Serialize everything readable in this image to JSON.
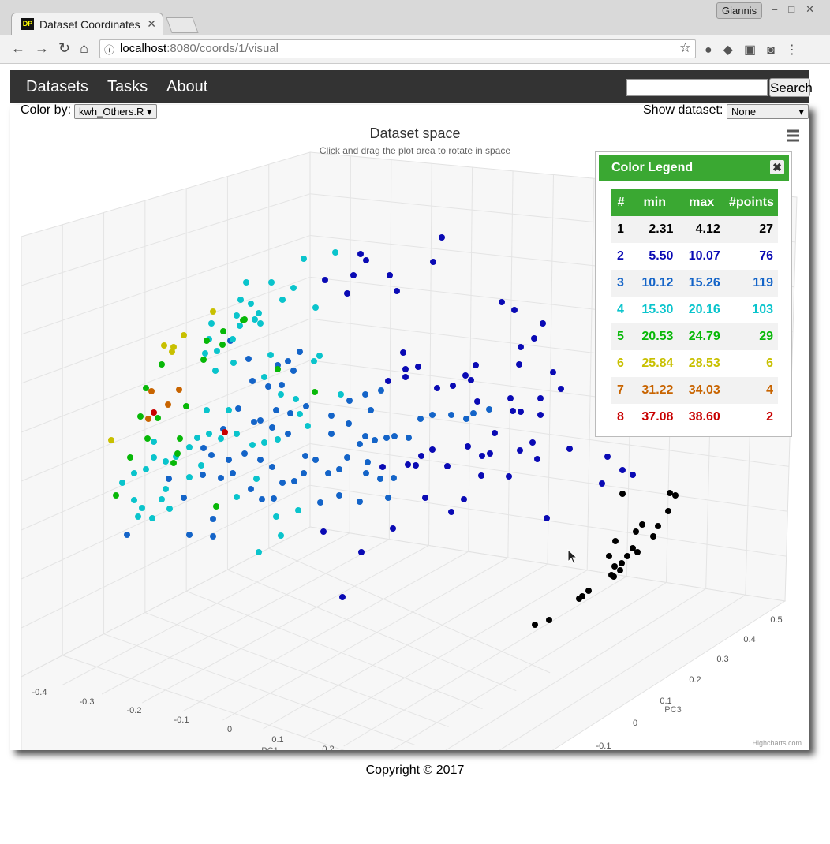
{
  "browser": {
    "tab_title": "Dataset Coordinates",
    "favicon": "DP",
    "url_host": "localhost",
    "url_rest": ":8080/coords/1/visual",
    "user": "Giannis"
  },
  "navbar": {
    "links": [
      "Datasets",
      "Tasks",
      "About"
    ],
    "search_button": "Search"
  },
  "controls": {
    "color_by_label": "Color by:",
    "color_by_value": "kwh_Others.R",
    "show_dataset_label": "Show dataset:",
    "show_dataset_value": "None"
  },
  "chart": {
    "title": "Dataset space",
    "subtitle": "Click and drag the plot area to rotate in space",
    "credits": "Highcharts.com",
    "x_axis": {
      "title": "PC1",
      "ticks": [
        "-0.4",
        "-0.3",
        "-0.2",
        "-0.1",
        "0",
        "0.1",
        "0.2"
      ]
    },
    "z_axis": {
      "title": "PC3",
      "ticks": [
        "0.5",
        "0.4",
        "0.3",
        "0.2",
        "0.1",
        "0",
        "-0.1"
      ]
    }
  },
  "legend": {
    "title": "Color Legend",
    "headers": [
      "#",
      "min",
      "max",
      "#points"
    ],
    "rows": [
      [
        "1",
        "2.31",
        "4.12",
        "27"
      ],
      [
        "2",
        "5.50",
        "10.07",
        "76"
      ],
      [
        "3",
        "10.12",
        "15.26",
        "119"
      ],
      [
        "4",
        "15.30",
        "20.16",
        "103"
      ],
      [
        "5",
        "20.53",
        "24.79",
        "29"
      ],
      [
        "6",
        "25.84",
        "28.53",
        "6"
      ],
      [
        "7",
        "31.22",
        "34.03",
        "4"
      ],
      [
        "8",
        "37.08",
        "38.60",
        "2"
      ]
    ],
    "colors": [
      "#000000",
      "#0a0ab4",
      "#1464c8",
      "#0ac4cc",
      "#08b808",
      "#c8c000",
      "#c86400",
      "#c80000"
    ]
  },
  "footer": "Copyright © 2017"
}
